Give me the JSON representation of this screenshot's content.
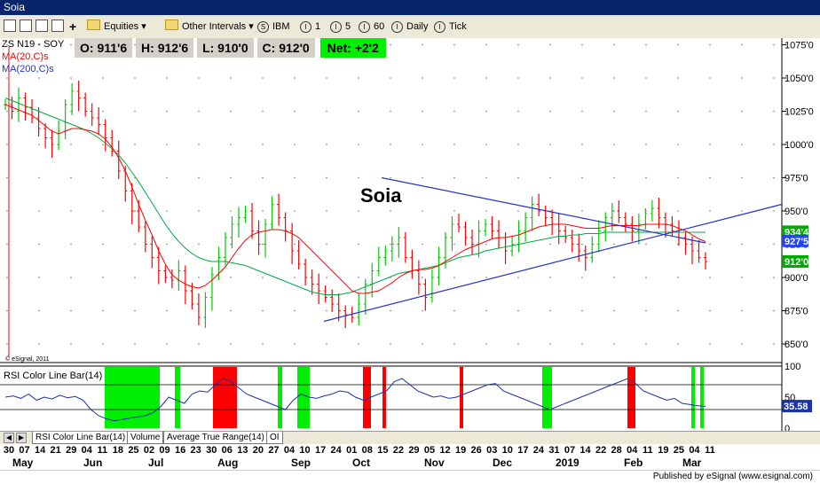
{
  "window": {
    "title": "Soia"
  },
  "toolbar": {
    "equities": "Equities",
    "other_intervals": "Other Intervals",
    "intervals": [
      "IBM",
      "1",
      "5",
      "60",
      "Daily",
      "Tick"
    ],
    "interval_icons": [
      "S",
      "I",
      "I",
      "I",
      "I",
      "I"
    ]
  },
  "header": {
    "symbol": "ZS N19 - SOY",
    "open": "O: 911'6",
    "high": "H: 912'6",
    "low": "L: 910'0",
    "close": "C: 912'0",
    "net": "Net: +2'2",
    "ma20": "MA(20,C)s",
    "ma200": "MA(200,C)s"
  },
  "annotation": {
    "title": "Soia"
  },
  "copyright": "© eSignal, 2011",
  "price_axis": {
    "ticks": [
      "1075'0",
      "1050'0",
      "1025'0",
      "1000'0",
      "975'0",
      "950'0",
      "925'0",
      "900'0",
      "875'0",
      "850'0"
    ],
    "tick_values": [
      1075,
      1050,
      1025,
      1000,
      975,
      950,
      925,
      900,
      875,
      850
    ],
    "badges": [
      {
        "text": "934'4",
        "color": "#00aa00",
        "value": 934.4
      },
      {
        "text": "927'5",
        "color": "#2244ff",
        "value": 927.5
      },
      {
        "text": "912'0",
        "color": "#00aa00",
        "value": 912.0
      }
    ]
  },
  "rsi": {
    "label": "RSI Color Line Bar(14)",
    "ticks": [
      "100",
      "50",
      "0"
    ],
    "current": "35.58"
  },
  "date_axis": {
    "days": [
      "30",
      "07",
      "14",
      "21",
      "29",
      "04",
      "11",
      "18",
      "25",
      "02",
      "09",
      "16",
      "23",
      "30",
      "06",
      "13",
      "20",
      "27",
      "04",
      "10",
      "17",
      "24",
      "01",
      "08",
      "15",
      "22",
      "29",
      "05",
      "12",
      "19",
      "26",
      "03",
      "10",
      "17",
      "24",
      "31",
      "07",
      "14",
      "22",
      "28",
      "04",
      "11",
      "19",
      "25",
      "04",
      "11"
    ],
    "months": [
      {
        "label": "May"
      },
      {
        "label": "Jun"
      },
      {
        "label": "Jul"
      },
      {
        "label": "Aug"
      },
      {
        "label": "Sep"
      },
      {
        "label": "Oct"
      },
      {
        "label": "Nov"
      },
      {
        "label": "Dec"
      },
      {
        "label": "2019"
      },
      {
        "label": "Feb"
      },
      {
        "label": "Mar"
      }
    ]
  },
  "tabs": [
    "RSI Color Line Bar(14)",
    "Volume",
    "Average True Range(14)",
    "OI"
  ],
  "footer": {
    "published": "Published by eSignal (www.esignal.com)"
  },
  "colors": {
    "up": "#00cc00",
    "down": "#ff0000",
    "ma20": "#ff0000",
    "ma200": "#00aa44",
    "trend": "#2233cc",
    "rsi": "#1a33aa"
  },
  "chart_data": {
    "type": "candlestick",
    "title": "Soia",
    "ylim": [
      840,
      1080
    ],
    "closes": [
      1030,
      1025,
      1035,
      1028,
      1020,
      1012,
      1005,
      1000,
      1010,
      1030,
      1040,
      1035,
      1025,
      1020,
      1015,
      1005,
      995,
      980,
      965,
      950,
      938,
      925,
      915,
      905,
      900,
      898,
      905,
      890,
      880,
      870,
      885,
      902,
      915,
      930,
      940,
      945,
      950,
      935,
      925,
      940,
      955,
      945,
      935,
      920,
      910,
      900,
      895,
      890,
      885,
      880,
      875,
      872,
      870,
      880,
      895,
      905,
      915,
      920,
      925,
      930,
      915,
      905,
      895,
      885,
      900,
      915,
      930,
      940,
      938,
      930,
      925,
      935,
      940,
      935,
      930,
      920,
      925,
      935,
      945,
      955,
      950,
      945,
      940,
      935,
      930,
      925,
      920,
      915,
      925,
      935,
      945,
      950,
      945,
      940,
      935,
      940,
      948,
      952,
      945,
      940,
      935,
      930,
      925,
      920,
      915,
      912
    ],
    "ma20": [
      1030,
      1028,
      1026,
      1024,
      1022,
      1018,
      1014,
      1010,
      1008,
      1010,
      1012,
      1012,
      1011,
      1010,
      1008,
      1004,
      998,
      990,
      980,
      968,
      955,
      943,
      932,
      920,
      910,
      902,
      898,
      895,
      893,
      892,
      894,
      898,
      903,
      908,
      915,
      922,
      928,
      932,
      934,
      935,
      936,
      936,
      935,
      933,
      930,
      925,
      920,
      915,
      910,
      905,
      900,
      895,
      890,
      888,
      888,
      889,
      890,
      893,
      896,
      900,
      903,
      905,
      906,
      906,
      907,
      909,
      912,
      915,
      918,
      921,
      923,
      925,
      927,
      929,
      930,
      930,
      931,
      932,
      934,
      936,
      938,
      939,
      940,
      940,
      940,
      939,
      938,
      937,
      937,
      937,
      938,
      939,
      939,
      939,
      939,
      939,
      940,
      940,
      940,
      940,
      939,
      937,
      935,
      932,
      929,
      927
    ],
    "ma200": [
      1035,
      1033,
      1031,
      1029,
      1027,
      1025,
      1023,
      1021,
      1019,
      1017,
      1015,
      1013,
      1011,
      1008,
      1005,
      1001,
      997,
      992,
      986,
      979,
      972,
      964,
      956,
      948,
      940,
      933,
      927,
      922,
      918,
      915,
      913,
      912,
      912,
      912,
      911,
      910,
      909,
      907,
      905,
      903,
      901,
      899,
      897,
      895,
      893,
      891,
      889,
      888,
      887,
      887,
      887,
      888,
      889,
      891,
      893,
      895,
      897,
      899,
      901,
      903,
      904,
      905,
      906,
      907,
      908,
      909,
      911,
      913,
      915,
      916,
      917,
      918,
      920,
      921,
      922,
      923,
      924,
      925,
      926,
      927,
      928,
      929,
      930,
      931,
      931,
      932,
      932,
      933,
      933,
      933,
      934,
      934,
      934,
      934,
      934,
      934,
      934,
      934,
      934,
      934,
      934,
      934,
      934,
      934,
      934,
      934
    ],
    "rsi": [
      50,
      52,
      48,
      55,
      45,
      50,
      47,
      53,
      49,
      51,
      45,
      30,
      20,
      15,
      12,
      14,
      16,
      18,
      20,
      25,
      35,
      50,
      45,
      40,
      55,
      60,
      58,
      70,
      80,
      75,
      65,
      55,
      50,
      45,
      40,
      35,
      30,
      45,
      55,
      50,
      48,
      52,
      55,
      60,
      58,
      50,
      45,
      50,
      55,
      60,
      75,
      80,
      70,
      60,
      55,
      50,
      52,
      48,
      50,
      55,
      60,
      65,
      70,
      72,
      60,
      55,
      50,
      45,
      40,
      35,
      30,
      35,
      40,
      45,
      50,
      55,
      60,
      65,
      70,
      75,
      80,
      72,
      60,
      55,
      50,
      45,
      48,
      40,
      38,
      36,
      35
    ],
    "trendlines": [
      {
        "from": [
          1,
          865
        ],
        "to": [
          4,
          945
        ]
      },
      {
        "from": [
          0.5,
          975
        ],
        "to": [
          4.2,
          927
        ]
      }
    ]
  }
}
